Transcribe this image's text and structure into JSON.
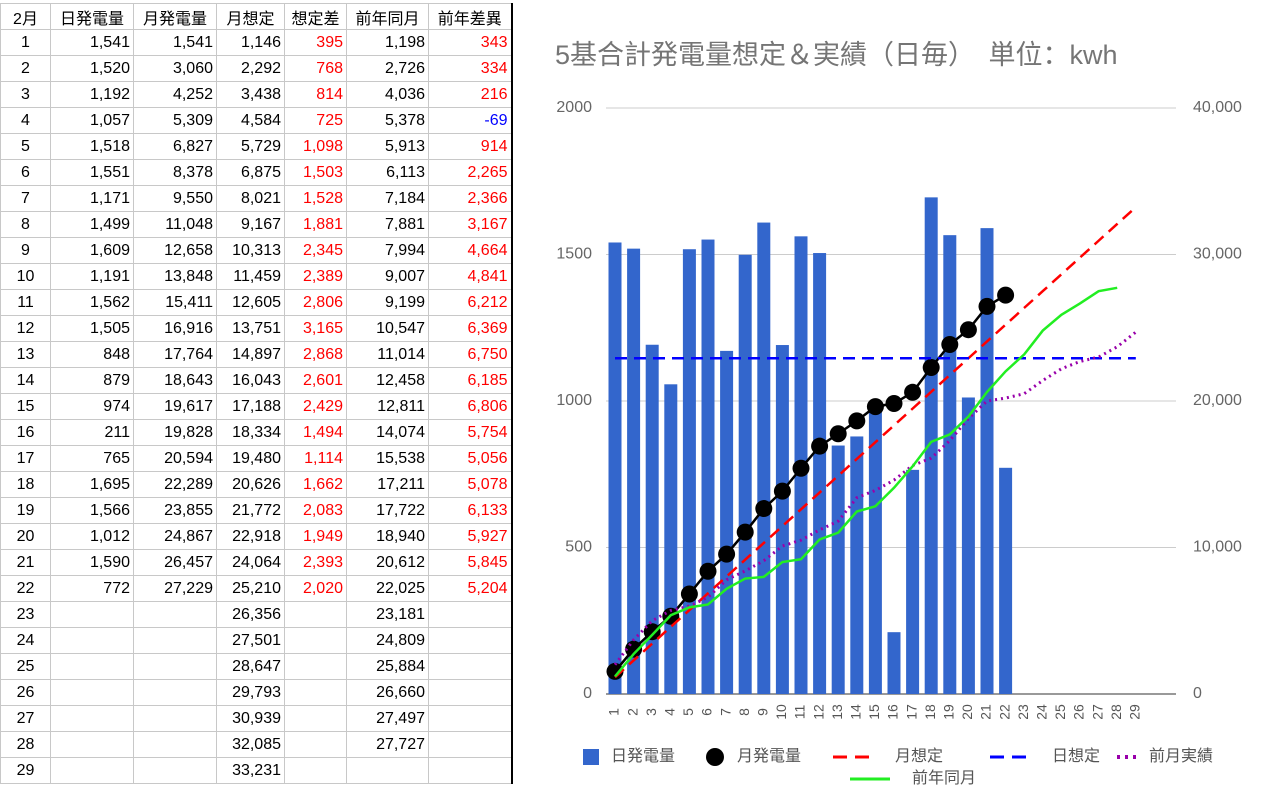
{
  "table": {
    "header": [
      "2月",
      "日発電量",
      "月発電量",
      "月想定",
      "想定差",
      "前年同月",
      "前年差異"
    ],
    "rows": [
      [
        "1",
        "1,541",
        "1,541",
        "1,146",
        "395",
        "1,198",
        "343"
      ],
      [
        "2",
        "1,520",
        "3,060",
        "2,292",
        "768",
        "2,726",
        "334"
      ],
      [
        "3",
        "1,192",
        "4,252",
        "3,438",
        "814",
        "4,036",
        "216"
      ],
      [
        "4",
        "1,057",
        "5,309",
        "4,584",
        "725",
        "5,378",
        "-69"
      ],
      [
        "5",
        "1,518",
        "6,827",
        "5,729",
        "1,098",
        "5,913",
        "914"
      ],
      [
        "6",
        "1,551",
        "8,378",
        "6,875",
        "1,503",
        "6,113",
        "2,265"
      ],
      [
        "7",
        "1,171",
        "9,550",
        "8,021",
        "1,528",
        "7,184",
        "2,366"
      ],
      [
        "8",
        "1,499",
        "11,048",
        "9,167",
        "1,881",
        "7,881",
        "3,167"
      ],
      [
        "9",
        "1,609",
        "12,658",
        "10,313",
        "2,345",
        "7,994",
        "4,664"
      ],
      [
        "10",
        "1,191",
        "13,848",
        "11,459",
        "2,389",
        "9,007",
        "4,841"
      ],
      [
        "11",
        "1,562",
        "15,411",
        "12,605",
        "2,806",
        "9,199",
        "6,212"
      ],
      [
        "12",
        "1,505",
        "16,916",
        "13,751",
        "3,165",
        "10,547",
        "6,369"
      ],
      [
        "13",
        "848",
        "17,764",
        "14,897",
        "2,868",
        "11,014",
        "6,750"
      ],
      [
        "14",
        "879",
        "18,643",
        "16,043",
        "2,601",
        "12,458",
        "6,185"
      ],
      [
        "15",
        "974",
        "19,617",
        "17,188",
        "2,429",
        "12,811",
        "6,806"
      ],
      [
        "16",
        "211",
        "19,828",
        "18,334",
        "1,494",
        "14,074",
        "5,754"
      ],
      [
        "17",
        "765",
        "20,594",
        "19,480",
        "1,114",
        "15,538",
        "5,056"
      ],
      [
        "18",
        "1,695",
        "22,289",
        "20,626",
        "1,662",
        "17,211",
        "5,078"
      ],
      [
        "19",
        "1,566",
        "23,855",
        "21,772",
        "2,083",
        "17,722",
        "6,133"
      ],
      [
        "20",
        "1,012",
        "24,867",
        "22,918",
        "1,949",
        "18,940",
        "5,927"
      ],
      [
        "21",
        "1,590",
        "26,457",
        "24,064",
        "2,393",
        "20,612",
        "5,845"
      ],
      [
        "22",
        "772",
        "27,229",
        "25,210",
        "2,020",
        "22,025",
        "5,204"
      ],
      [
        "23",
        null,
        null,
        "26,356",
        null,
        "23,181",
        null
      ],
      [
        "24",
        null,
        null,
        "27,501",
        null,
        "24,809",
        null
      ],
      [
        "25",
        null,
        null,
        "28,647",
        null,
        "25,884",
        null
      ],
      [
        "26",
        null,
        null,
        "29,793",
        null,
        "26,660",
        null
      ],
      [
        "27",
        null,
        null,
        "30,939",
        null,
        "27,497",
        null
      ],
      [
        "28",
        null,
        null,
        "32,085",
        null,
        "27,727",
        null
      ],
      [
        "29",
        null,
        null,
        "33,231",
        null,
        null,
        null
      ]
    ]
  },
  "chart_data": {
    "type": "combo",
    "title": "5基合計発電量想定＆実績（日毎）　単位：kwh",
    "categories": [
      "1",
      "2",
      "3",
      "4",
      "5",
      "6",
      "7",
      "8",
      "9",
      "10",
      "11",
      "12",
      "13",
      "14",
      "15",
      "16",
      "17",
      "18",
      "19",
      "20",
      "21",
      "22",
      "23",
      "24",
      "25",
      "26",
      "27",
      "28",
      "29"
    ],
    "ylim": [
      0,
      2000
    ],
    "yticks": [
      0,
      500,
      1000,
      1500,
      2000
    ],
    "y2lim": [
      0,
      40000
    ],
    "y2ticks": [
      0,
      {
        "value": 10000,
        "label": "10,000"
      },
      {
        "value": 20000,
        "label": "20,000"
      },
      {
        "value": 30000,
        "label": "30,000"
      },
      {
        "value": 40000,
        "label": "40,000"
      }
    ],
    "grid": true,
    "series": [
      {
        "name": "日発電量",
        "type": "bar",
        "color": "#3366cc",
        "axis": "y",
        "values": [
          1541,
          1520,
          1192,
          1057,
          1518,
          1551,
          1171,
          1499,
          1609,
          1191,
          1562,
          1505,
          848,
          879,
          974,
          211,
          765,
          1695,
          1566,
          1012,
          1590,
          772,
          null,
          null,
          null,
          null,
          null,
          null,
          null
        ]
      },
      {
        "name": "月発電量",
        "type": "line",
        "marker": "circle",
        "color": "#000000",
        "axis": "y2",
        "values": [
          1541,
          3060,
          4252,
          5309,
          6827,
          8378,
          9550,
          11048,
          12658,
          13848,
          15411,
          16916,
          17764,
          18643,
          19617,
          19828,
          20594,
          22289,
          23855,
          24867,
          26457,
          27229,
          null,
          null,
          null,
          null,
          null,
          null,
          null
        ]
      },
      {
        "name": "月想定",
        "type": "line",
        "dash": "dashed",
        "color": "#ff0000",
        "axis": "y2",
        "values": [
          1146,
          2292,
          3438,
          4584,
          5729,
          6875,
          8021,
          9167,
          10313,
          11459,
          12605,
          13751,
          14897,
          16043,
          17188,
          18334,
          19480,
          20626,
          21772,
          22918,
          24064,
          25210,
          26356,
          27501,
          28647,
          29793,
          30939,
          32085,
          33231
        ]
      },
      {
        "name": "日想定",
        "type": "line",
        "dash": "dashed",
        "color": "#0000ff",
        "axis": "y",
        "values": [
          1146,
          1146,
          1146,
          1146,
          1146,
          1146,
          1146,
          1146,
          1146,
          1146,
          1146,
          1146,
          1146,
          1146,
          1146,
          1146,
          1146,
          1146,
          1146,
          1146,
          1146,
          1146,
          1146,
          1146,
          1146,
          1146,
          1146,
          1146,
          1146
        ]
      },
      {
        "name": "前月実績",
        "type": "line",
        "dash": "dotted",
        "color": "#9900aa",
        "axis": "y2",
        "values": [
          2000,
          3700,
          5000,
          5700,
          6000,
          6600,
          7800,
          8400,
          9100,
          10100,
          10500,
          11200,
          11800,
          13400,
          13900,
          14600,
          15600,
          16100,
          17300,
          18800,
          20000,
          20200,
          20500,
          21400,
          22200,
          22700,
          23000,
          23700,
          24700
        ]
      },
      {
        "name": "前年同月",
        "type": "line",
        "color": "#22ee22",
        "axis": "y2",
        "values": [
          1198,
          2726,
          4036,
          5378,
          5913,
          6113,
          7184,
          7881,
          7994,
          9007,
          9199,
          10547,
          11014,
          12458,
          12811,
          14074,
          15538,
          17211,
          17722,
          18940,
          20612,
          22025,
          23181,
          24809,
          25884,
          26660,
          27497,
          27727,
          null
        ]
      }
    ]
  }
}
